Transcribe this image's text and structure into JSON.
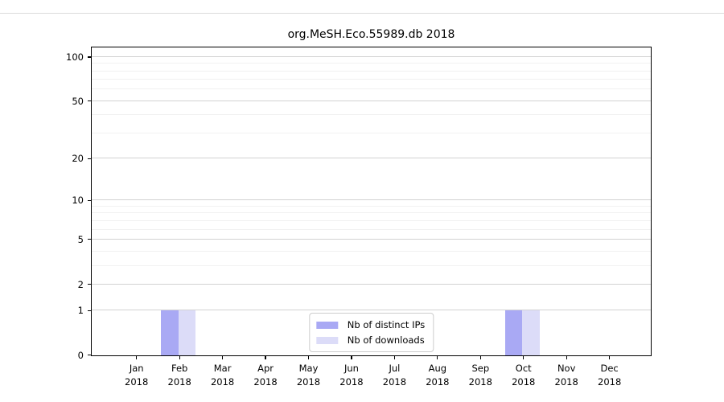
{
  "chart_data": {
    "type": "bar",
    "title": "org.MeSH.Eco.55989.db 2018",
    "categories": [
      "Jan 2018",
      "Feb 2018",
      "Mar 2018",
      "Apr 2018",
      "May 2018",
      "Jun 2018",
      "Jul 2018",
      "Aug 2018",
      "Sep 2018",
      "Oct 2018",
      "Nov 2018",
      "Dec 2018"
    ],
    "series": [
      {
        "name": "Nb of distinct IPs",
        "color": "#a9a9f4",
        "values": [
          0,
          1,
          0,
          0,
          0,
          0,
          0,
          0,
          0,
          1,
          0,
          0
        ]
      },
      {
        "name": "Nb of downloads",
        "color": "#dcdcf8",
        "values": [
          0,
          1,
          0,
          0,
          0,
          0,
          0,
          0,
          0,
          1,
          0,
          0
        ]
      }
    ],
    "xlabel": "",
    "ylabel": "",
    "y_scale": "log1p",
    "ylim": [
      0,
      116
    ],
    "y_major_ticks": [
      0,
      1,
      2,
      5,
      10,
      20,
      50,
      100
    ],
    "y_minor_gridlines": [
      3,
      4,
      6,
      7,
      8,
      9,
      30,
      40,
      60,
      70,
      80,
      90
    ],
    "grid": true,
    "legend_position": "lower center"
  }
}
